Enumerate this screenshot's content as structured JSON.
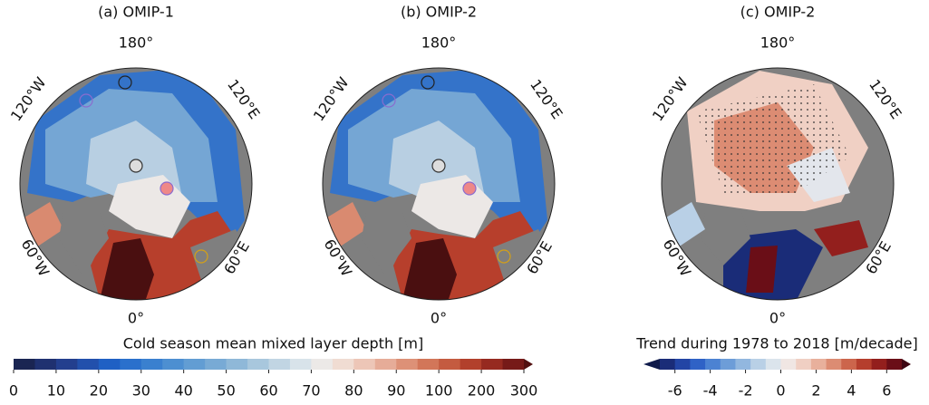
{
  "panels": [
    {
      "title": "(a) OMIP-1",
      "labels": {
        "top": "180°",
        "upper_left": "120°W",
        "upper_right": "120°E",
        "lower_left": "60°W",
        "lower_right": "60°E",
        "bottom": "0°"
      }
    },
    {
      "title": "(b) OMIP-2",
      "labels": {
        "top": "180°",
        "upper_left": "120°W",
        "upper_right": "120°E",
        "lower_left": "60°W",
        "lower_right": "60°E",
        "bottom": "0°"
      }
    },
    {
      "title": "(c) OMIP-2",
      "labels": {
        "top": "180°",
        "upper_left": "120°W",
        "upper_right": "120°E",
        "lower_left": "60°W",
        "lower_right": "60°E",
        "bottom": "0°"
      }
    }
  ],
  "colorbars": [
    {
      "label": "Cold season mean mixed layer depth [m]",
      "ticks": [
        0,
        10,
        20,
        30,
        40,
        50,
        60,
        70,
        80,
        90,
        100,
        200,
        300
      ],
      "colors": [
        "#1a2552",
        "#1f3170",
        "#233f8e",
        "#2250ac",
        "#1f60c4",
        "#2a70cc",
        "#3a80cf",
        "#4d8fd1",
        "#629dd3",
        "#78aad5",
        "#8fb8d8",
        "#a8c7dd",
        "#c1d5e3",
        "#d8e3ea",
        "#ece9e7",
        "#f0dcd2",
        "#edc6b7",
        "#e6ac98",
        "#dd9177",
        "#d27659",
        "#c45b40",
        "#b2402c",
        "#962a20",
        "#761a18",
        "#521010"
      ]
    },
    {
      "label": "Trend during 1978 to 2018 [m/decade]",
      "ticks": [
        -6,
        -4,
        -2,
        0,
        2,
        4,
        6
      ],
      "colors": [
        "#0f1a4a",
        "#1a2c78",
        "#2345a5",
        "#2f62c6",
        "#4c82d2",
        "#6d9dd8",
        "#92b7df",
        "#b9d0e6",
        "#dbe4ec",
        "#f0e6e3",
        "#f0cfc3",
        "#e8b09c",
        "#dc8c73",
        "#cc654c",
        "#b53e2d",
        "#931f1d",
        "#6a0e17",
        "#3f0612"
      ]
    }
  ]
}
